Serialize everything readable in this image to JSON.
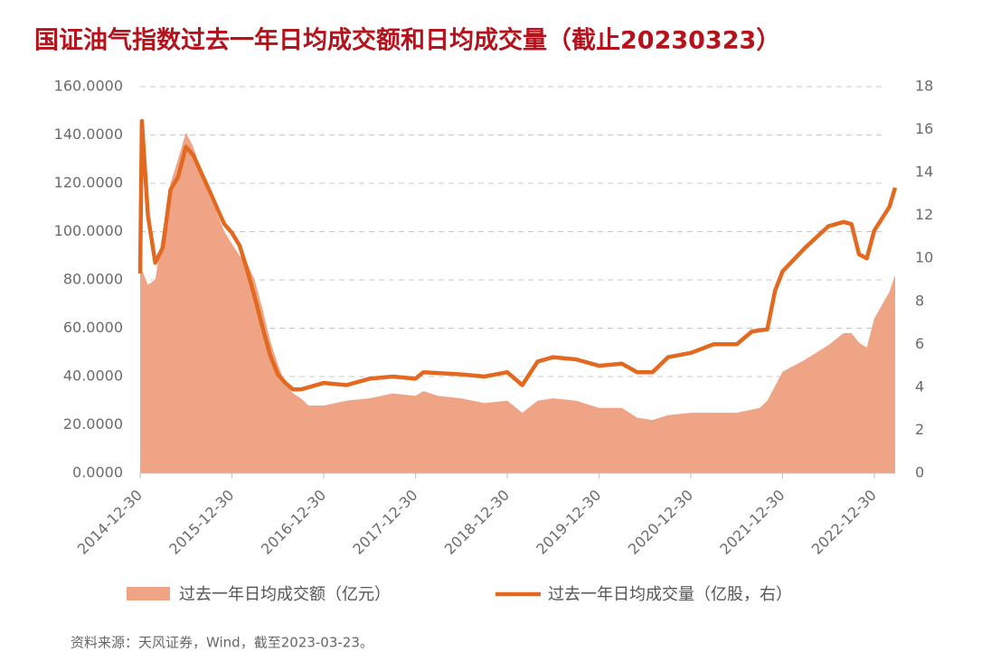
{
  "chart_data": {
    "type": "area-line",
    "title": "国证油气指数过去一年日均成交额和日均成交量（截止20230323）",
    "source": "资料来源：天风证券，Wind，截至2023-03-23。",
    "xlim": [
      "2014-12-30",
      "2023-03-23"
    ],
    "xticks": [
      "2014-12-30",
      "2015-12-30",
      "2016-12-30",
      "2017-12-30",
      "2018-12-30",
      "2019-12-30",
      "2020-12-30",
      "2021-12-30",
      "2022-12-30"
    ],
    "ylim": [
      0,
      160
    ],
    "yticks": [
      {
        "value": 0,
        "label": "0.0000"
      },
      {
        "value": 20,
        "label": "20.0000"
      },
      {
        "value": 40,
        "label": "40.0000"
      },
      {
        "value": 60,
        "label": "60.0000"
      },
      {
        "value": 80,
        "label": "80.0000"
      },
      {
        "value": 100,
        "label": "100.0000"
      },
      {
        "value": 120,
        "label": "120.0000"
      },
      {
        "value": 140,
        "label": "140.0000"
      },
      {
        "value": 160,
        "label": "160.0000"
      }
    ],
    "y2lim": [
      0,
      18
    ],
    "y2ticks": [
      0,
      2,
      4,
      6,
      8,
      10,
      12,
      14,
      16,
      18
    ],
    "grid": true,
    "legend": "bottom",
    "series": [
      {
        "name": "过去一年日均成交额（亿元）",
        "kind": "area",
        "color": "#eea485",
        "x": [
          "2014-12-30",
          "2015-01-30",
          "2015-02-28",
          "2015-03-30",
          "2015-04-30",
          "2015-05-30",
          "2015-06-30",
          "2015-07-30",
          "2015-08-30",
          "2015-09-30",
          "2015-10-30",
          "2015-11-30",
          "2015-12-30",
          "2016-01-30",
          "2016-02-28",
          "2016-03-30",
          "2016-04-30",
          "2016-05-30",
          "2016-06-30",
          "2016-07-30",
          "2016-08-30",
          "2016-09-30",
          "2016-10-30",
          "2016-12-30",
          "2017-03-30",
          "2017-06-30",
          "2017-09-30",
          "2017-12-30",
          "2018-01-30",
          "2018-03-30",
          "2018-06-30",
          "2018-09-30",
          "2018-12-30",
          "2019-02-28",
          "2019-04-30",
          "2019-06-30",
          "2019-09-30",
          "2019-12-30",
          "2020-03-30",
          "2020-05-30",
          "2020-07-30",
          "2020-09-30",
          "2020-12-30",
          "2021-03-30",
          "2021-06-30",
          "2021-09-30",
          "2021-10-30",
          "2021-12-30",
          "2022-03-30",
          "2022-06-30",
          "2022-08-30",
          "2022-09-30",
          "2022-10-30",
          "2022-11-30",
          "2022-12-30",
          "2023-02-28",
          "2023-03-23"
        ],
        "values": [
          86,
          78,
          80,
          100,
          120,
          130,
          141,
          135,
          125,
          115,
          108,
          100,
          95,
          90,
          87,
          80,
          68,
          55,
          45,
          37,
          33,
          31,
          28,
          28,
          30,
          31,
          33,
          32,
          34,
          32,
          31,
          29,
          30,
          25,
          30,
          31,
          30,
          27,
          27,
          23,
          22,
          24,
          25,
          25,
          25,
          27,
          30,
          42,
          47,
          53,
          58,
          58,
          54,
          52,
          64,
          75,
          82
        ]
      },
      {
        "name": "过去一年日均成交量（亿股，右）",
        "kind": "line",
        "axis": "y2",
        "color": "#e2691f",
        "x": [
          "2014-12-30",
          "2015-01-06",
          "2015-01-30",
          "2015-02-28",
          "2015-03-30",
          "2015-04-30",
          "2015-05-30",
          "2015-06-30",
          "2015-07-30",
          "2015-08-30",
          "2015-09-30",
          "2015-10-30",
          "2015-11-30",
          "2015-12-30",
          "2016-01-30",
          "2016-02-28",
          "2016-03-30",
          "2016-04-30",
          "2016-05-30",
          "2016-06-30",
          "2016-07-30",
          "2016-08-30",
          "2016-09-30",
          "2016-12-30",
          "2017-03-30",
          "2017-06-30",
          "2017-09-30",
          "2017-12-30",
          "2018-01-30",
          "2018-06-30",
          "2018-09-30",
          "2018-12-30",
          "2019-02-28",
          "2019-04-30",
          "2019-06-30",
          "2019-09-30",
          "2019-12-30",
          "2020-03-30",
          "2020-05-30",
          "2020-07-30",
          "2020-09-30",
          "2020-12-30",
          "2021-03-30",
          "2021-06-30",
          "2021-08-30",
          "2021-10-30",
          "2021-11-30",
          "2021-12-30",
          "2022-03-30",
          "2022-06-30",
          "2022-08-30",
          "2022-09-30",
          "2022-10-30",
          "2022-11-30",
          "2022-12-30",
          "2023-02-28",
          "2023-03-23"
        ],
        "values": [
          9.3,
          16.4,
          12.0,
          9.8,
          10.5,
          13.2,
          13.8,
          15.2,
          14.8,
          14.0,
          13.2,
          12.4,
          11.6,
          11.2,
          10.6,
          9.5,
          8.2,
          6.8,
          5.5,
          4.6,
          4.2,
          3.9,
          3.9,
          4.2,
          4.1,
          4.4,
          4.5,
          4.4,
          4.7,
          4.6,
          4.5,
          4.7,
          4.1,
          5.2,
          5.4,
          5.3,
          5.0,
          5.1,
          4.7,
          4.7,
          5.4,
          5.6,
          6.0,
          6.0,
          6.6,
          6.7,
          8.5,
          9.4,
          10.5,
          11.5,
          11.7,
          11.6,
          10.2,
          10.0,
          11.3,
          12.4,
          13.3
        ]
      }
    ]
  }
}
